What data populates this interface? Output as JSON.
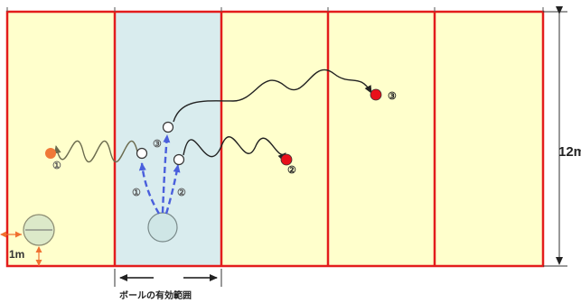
{
  "dimension_label": "12m",
  "ball_label": "1m",
  "zone_caption": "ボールの有効範囲",
  "markers": {
    "red_1": "①",
    "red_2": "②",
    "red_3": "③",
    "white_1": "①",
    "white_2": "②",
    "white_3": "③"
  },
  "colors": {
    "court_fill": "#ffffcc",
    "zone_fill": "#d9ecee",
    "court_line": "#e31c1c",
    "pass_arrow": "#4a5fdc",
    "run_line": "#222222",
    "red_player": "#e8101a",
    "orange_player": "#f07838",
    "dimension_arrow": "#f07030"
  }
}
